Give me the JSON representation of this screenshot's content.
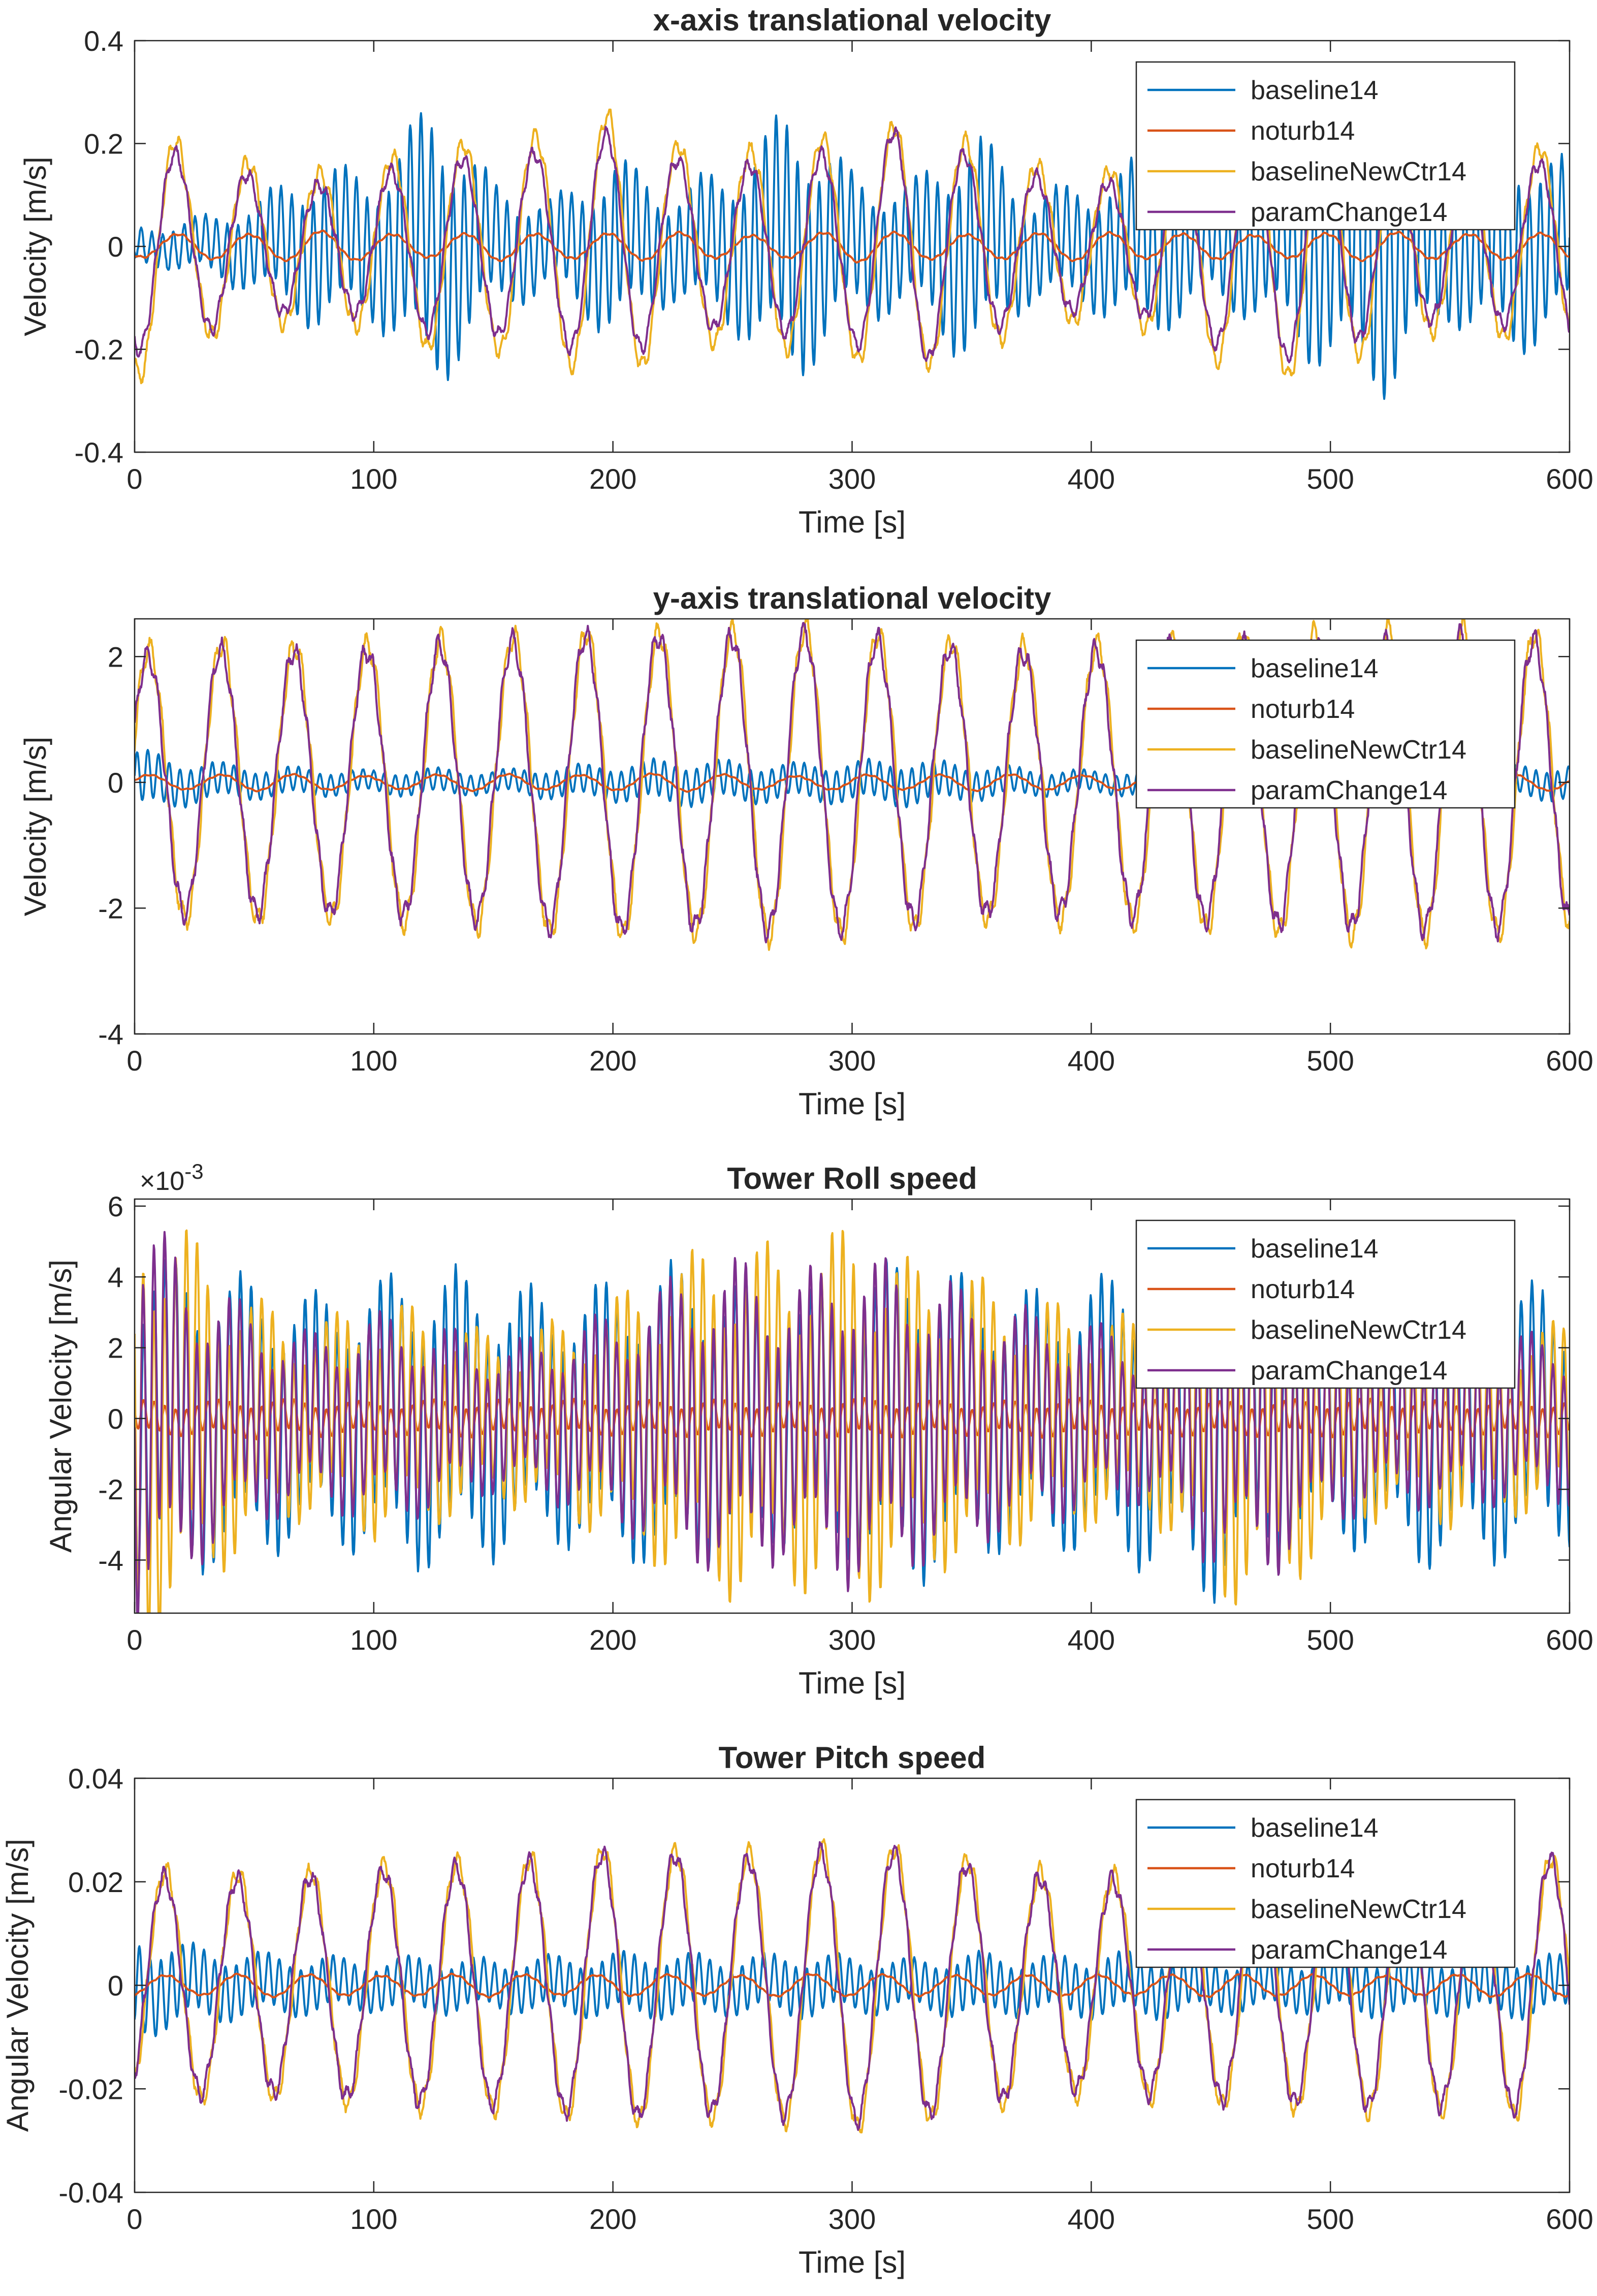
{
  "colors": {
    "baseline14": "#0072BD",
    "noturb14": "#D95319",
    "baselineNewCtr14": "#EDB120",
    "paramChange14": "#7E2F8E"
  },
  "chart_data": [
    {
      "type": "line",
      "title": "x-axis translational velocity",
      "xlabel": "Time [s]",
      "ylabel": "Velocity [m/s]",
      "xlim": [
        0,
        600
      ],
      "ylim": [
        -0.4,
        0.4
      ],
      "xticks": [
        0,
        100,
        200,
        300,
        400,
        500,
        600
      ],
      "yticks": [
        -0.4,
        -0.2,
        0,
        0.2,
        0.4
      ],
      "xtick_labels": [
        "0",
        "100",
        "200",
        "300",
        "400",
        "500",
        "600"
      ],
      "ytick_labels": [
        "-0.4",
        "-0.2",
        "0",
        "0.2",
        "0.4"
      ],
      "exponent_label": "",
      "grid": false,
      "legend_position": "top-right",
      "series": [
        {
          "name": "baseline14",
          "period": 4.5,
          "amplitude": 0.14,
          "envelope": [
            0.2,
            0.3,
            0.5,
            0.9,
            0.8,
            1.6,
            0.7,
            0.5,
            1.0,
            0.6,
            0.9,
            1.5,
            0.8,
            0.7,
            1.3,
            0.6,
            0.7,
            1.0,
            0.6,
            0.9,
            1.4,
            1.6,
            0.8,
            1.2,
            0.9
          ]
        },
        {
          "name": "noturb14",
          "period": 30,
          "amplitude": 0.025,
          "envelope": [
            0.8,
            1.0,
            0.9,
            1.2,
            1.0,
            0.8,
            1.1,
            0.9,
            1.0,
            1.1,
            0.8,
            0.9,
            1.2,
            1.0,
            0.9,
            1.0,
            1.1,
            0.9,
            1.0,
            0.8,
            1.0,
            1.1,
            0.9,
            1.0,
            1.0
          ]
        },
        {
          "name": "baselineNewCtr14",
          "period": 30,
          "amplitude": 0.2,
          "envelope": [
            1.3,
            0.9,
            0.8,
            0.7,
            0.8,
            1.0,
            1.0,
            1.1,
            1.3,
            1.0,
            0.9,
            1.0,
            1.1,
            1.2,
            1.0,
            0.8,
            0.7,
            0.8,
            1.1,
            1.3,
            1.2,
            0.9,
            0.8,
            0.9,
            1.0
          ]
        },
        {
          "name": "paramChange14",
          "period": 30,
          "amplitude": 0.17,
          "envelope": [
            1.2,
            1.0,
            0.8,
            0.7,
            0.8,
            1.0,
            1.0,
            1.1,
            1.3,
            1.0,
            0.9,
            1.0,
            1.1,
            1.4,
            1.0,
            0.8,
            0.7,
            0.8,
            1.1,
            1.3,
            1.2,
            0.9,
            0.8,
            0.9,
            1.0
          ]
        }
      ]
    },
    {
      "type": "line",
      "title": "y-axis translational velocity",
      "xlabel": "Time [s]",
      "ylabel": "Velocity [m/s]",
      "xlim": [
        0,
        600
      ],
      "ylim": [
        -4,
        2.6
      ],
      "xticks": [
        0,
        100,
        200,
        300,
        400,
        500,
        600
      ],
      "yticks": [
        -4,
        -2,
        0,
        2
      ],
      "xtick_labels": [
        "0",
        "100",
        "200",
        "300",
        "400",
        "500",
        "600"
      ],
      "ytick_labels": [
        "-4",
        "-2",
        "0",
        "2"
      ],
      "exponent_label": "",
      "grid": false,
      "legend_position": "top-right",
      "series": [
        {
          "name": "baseline14",
          "period": 4.5,
          "amplitude": 0.3,
          "envelope": [
            1.4,
            0.9,
            0.7,
            0.6,
            0.5,
            0.6,
            0.5,
            0.7,
            0.8,
            1.0,
            0.9,
            0.8,
            0.9,
            1.0,
            0.8,
            0.6,
            0.5,
            0.6,
            0.5,
            0.6,
            0.7,
            0.6,
            0.5,
            0.7,
            0.8
          ]
        },
        {
          "name": "noturb14",
          "period": 30,
          "amplitude": 0.12,
          "envelope": [
            1.0,
            0.9,
            1.1,
            1.0,
            0.8,
            1.0,
            1.1,
            0.9,
            1.0,
            1.2,
            1.0,
            0.8,
            1.0,
            0.9,
            1.1,
            1.0,
            0.9,
            1.0,
            1.0,
            1.1,
            0.9,
            1.0,
            1.0,
            1.1,
            1.0
          ]
        },
        {
          "name": "baselineNewCtr14",
          "period": 30.5,
          "amplitude": 2.2,
          "envelope": [
            0.95,
            1.0,
            1.0,
            0.98,
            1.0,
            1.03,
            1.05,
            1.08,
            1.1,
            1.08,
            1.1,
            1.12,
            1.1,
            1.05,
            1.0,
            0.98,
            1.0,
            1.03,
            1.05,
            1.08,
            1.1,
            1.1,
            1.12,
            1.1,
            1.05
          ]
        },
        {
          "name": "paramChange14",
          "period": 30.5,
          "amplitude": 2.1,
          "envelope": [
            0.95,
            1.0,
            1.0,
            0.98,
            1.0,
            1.03,
            1.05,
            1.1,
            1.12,
            1.1,
            1.1,
            1.15,
            1.1,
            1.05,
            1.0,
            0.98,
            1.0,
            1.02,
            1.05,
            1.08,
            1.1,
            1.1,
            1.12,
            1.1,
            1.05
          ]
        }
      ]
    },
    {
      "type": "line",
      "title": "Tower Roll speed",
      "xlabel": "Time [s]",
      "ylabel": "Angular Velocity [m/s]",
      "xlim": [
        0,
        600
      ],
      "ylim": [
        -5.5,
        6.2
      ],
      "xticks": [
        0,
        100,
        200,
        300,
        400,
        500,
        600
      ],
      "yticks": [
        -4,
        -2,
        0,
        2,
        4,
        6
      ],
      "xtick_labels": [
        "0",
        "100",
        "200",
        "300",
        "400",
        "500",
        "600"
      ],
      "ytick_labels": [
        "-4",
        "-2",
        "0",
        "2",
        "4",
        "6"
      ],
      "exponent_label": "×10",
      "exponent_power": "-3",
      "grid": false,
      "legend_position": "top-right",
      "series": [
        {
          "name": "baseline14",
          "period": 4.5,
          "amplitude": 3.0,
          "envelope": [
            1.2,
            1.1,
            1.0,
            0.9,
            1.0,
            1.1,
            1.0,
            0.9,
            1.0,
            1.1,
            1.0,
            0.9,
            1.0,
            1.2,
            1.0,
            0.9,
            1.0,
            1.1,
            1.3,
            1.0,
            0.9,
            1.0,
            1.1,
            1.0,
            0.9
          ]
        },
        {
          "name": "noturb14",
          "period": 4.5,
          "amplitude": 0.4,
          "envelope": [
            1.0,
            0.9,
            1.1,
            1.0,
            0.9,
            1.0,
            1.0,
            1.1,
            0.9,
            1.0,
            1.0,
            0.9,
            1.1,
            1.0,
            0.9,
            1.0,
            1.1,
            1.0,
            0.9,
            1.0,
            1.0,
            1.1,
            0.9,
            1.0,
            1.0
          ]
        },
        {
          "name": "baselineNewCtr14",
          "period": 4.5,
          "amplitude": 2.6,
          "envelope": [
            2.0,
            1.5,
            1.0,
            0.8,
            1.0,
            0.9,
            0.7,
            0.8,
            1.0,
            1.3,
            1.5,
            1.4,
            1.6,
            1.3,
            1.2,
            1.0,
            0.9,
            0.8,
            1.5,
            1.6,
            1.0,
            0.8,
            0.9,
            0.8,
            0.8
          ]
        },
        {
          "name": "paramChange14",
          "period": 4.5,
          "amplitude": 2.3,
          "envelope": [
            2.0,
            1.4,
            1.0,
            0.8,
            1.0,
            0.9,
            0.7,
            0.8,
            1.0,
            1.3,
            1.5,
            1.3,
            1.6,
            1.4,
            1.2,
            1.0,
            0.9,
            0.8,
            1.4,
            1.5,
            1.0,
            0.8,
            0.9,
            0.8,
            0.8
          ]
        }
      ]
    },
    {
      "type": "line",
      "title": "Tower Pitch speed",
      "xlabel": "Time [s]",
      "ylabel": "Angular Velocity [m/s]",
      "xlim": [
        0,
        600
      ],
      "ylim": [
        -0.04,
        0.04
      ],
      "xticks": [
        0,
        100,
        200,
        300,
        400,
        500,
        600
      ],
      "yticks": [
        -0.04,
        -0.02,
        0,
        0.02,
        0.04
      ],
      "xtick_labels": [
        "0",
        "100",
        "200",
        "300",
        "400",
        "500",
        "600"
      ],
      "ytick_labels": [
        "-0.04",
        "-0.02",
        "0",
        "0.02",
        "0.04"
      ],
      "exponent_label": "",
      "grid": false,
      "legend_position": "top-right",
      "series": [
        {
          "name": "baseline14",
          "period": 4.5,
          "amplitude": 0.005,
          "envelope": [
            1.6,
            1.2,
            1.0,
            0.9,
            0.8,
            0.9,
            0.8,
            0.9,
            1.0,
            1.0,
            0.9,
            1.0,
            0.9,
            0.8,
            1.0,
            0.9,
            1.0,
            1.0,
            0.9,
            0.8,
            0.9,
            1.0,
            0.9,
            1.0,
            0.9
          ]
        },
        {
          "name": "noturb14",
          "period": 30,
          "amplitude": 0.002,
          "envelope": [
            1.0,
            0.9,
            1.1,
            1.0,
            0.9,
            1.0,
            1.1,
            0.9,
            1.0,
            1.0,
            0.9,
            1.1,
            1.0,
            1.0,
            0.9,
            1.0,
            1.0,
            0.9,
            1.1,
            1.0,
            1.0,
            0.9,
            1.0,
            1.1,
            1.0
          ]
        },
        {
          "name": "baselineNewCtr14",
          "period": 30.5,
          "amplitude": 0.022,
          "envelope": [
            1.0,
            1.0,
            0.98,
            1.0,
            1.05,
            1.08,
            1.1,
            1.15,
            1.2,
            1.18,
            1.15,
            1.2,
            1.25,
            1.2,
            1.1,
            1.0,
            0.95,
            1.0,
            1.05,
            1.08,
            1.1,
            1.12,
            1.1,
            1.15,
            1.1
          ]
        },
        {
          "name": "paramChange14",
          "period": 30.5,
          "amplitude": 0.021,
          "envelope": [
            1.0,
            1.0,
            0.98,
            1.0,
            1.05,
            1.08,
            1.1,
            1.15,
            1.22,
            1.2,
            1.15,
            1.2,
            1.25,
            1.22,
            1.1,
            1.0,
            0.95,
            1.0,
            1.05,
            1.08,
            1.1,
            1.12,
            1.1,
            1.15,
            1.15
          ]
        }
      ]
    }
  ]
}
